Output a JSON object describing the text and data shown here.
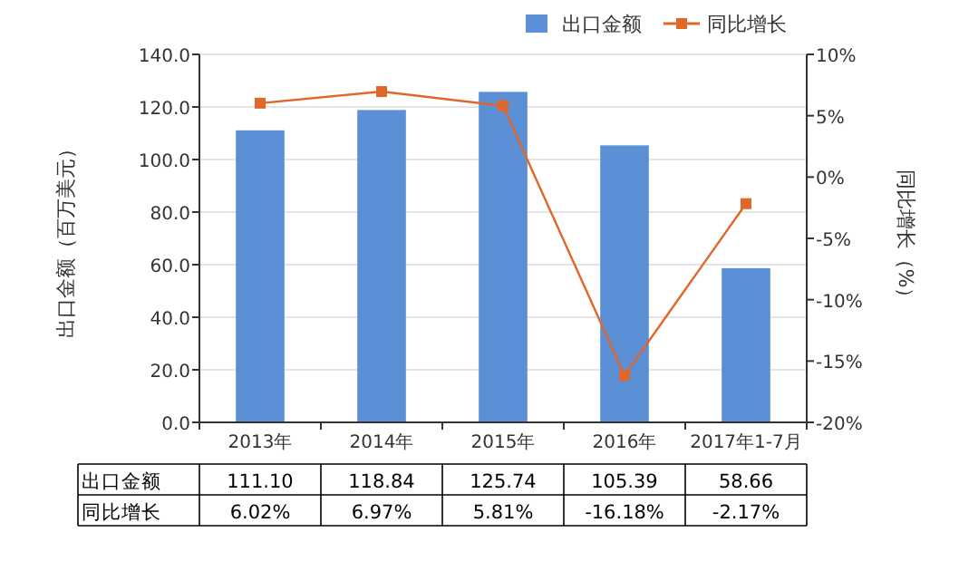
{
  "chart_data": {
    "type": "bar",
    "categories": [
      "2013年",
      "2014年",
      "2015年",
      "2016年",
      "2017年1-7月"
    ],
    "ylabel": "出口金额（百万美元）",
    "y2label": "同比增长（%）",
    "ylim": [
      0,
      140
    ],
    "yticks": [
      {
        "value": 0,
        "label": "0.0"
      },
      {
        "value": 20,
        "label": "20.0"
      },
      {
        "value": 40,
        "label": "40.0"
      },
      {
        "value": 60,
        "label": "60.0"
      },
      {
        "value": 80,
        "label": "80.0"
      },
      {
        "value": 100,
        "label": "100.0"
      },
      {
        "value": 120,
        "label": "120.0"
      },
      {
        "value": 140,
        "label": "140.0"
      }
    ],
    "y2lim": [
      -20,
      10
    ],
    "y2ticks": [
      {
        "value": -20,
        "label": "-20%"
      },
      {
        "value": -15,
        "label": "-15%"
      },
      {
        "value": -10,
        "label": "-10%"
      },
      {
        "value": -5,
        "label": "-5%"
      },
      {
        "value": 0,
        "label": "0%"
      },
      {
        "value": 5,
        "label": "5%"
      },
      {
        "value": 10,
        "label": "10%"
      }
    ],
    "grid": "y",
    "legend": "top",
    "marker": "square",
    "series": [
      {
        "name": "出口金额",
        "color": "#5b8fd6",
        "values": [
          111.1,
          118.84,
          125.74,
          105.39,
          58.66
        ],
        "value_labels": [
          "111.10",
          "118.84",
          "125.74",
          "105.39",
          "58.66"
        ]
      },
      {
        "name": "同比增长",
        "type": "line",
        "axis": "y2",
        "color": "#e0662a",
        "values": [
          6.02,
          6.97,
          5.81,
          -16.18,
          -2.17
        ],
        "value_labels": [
          "6.02%",
          "6.97%",
          "5.81%",
          "-16.18%",
          "-2.17%"
        ]
      }
    ]
  }
}
